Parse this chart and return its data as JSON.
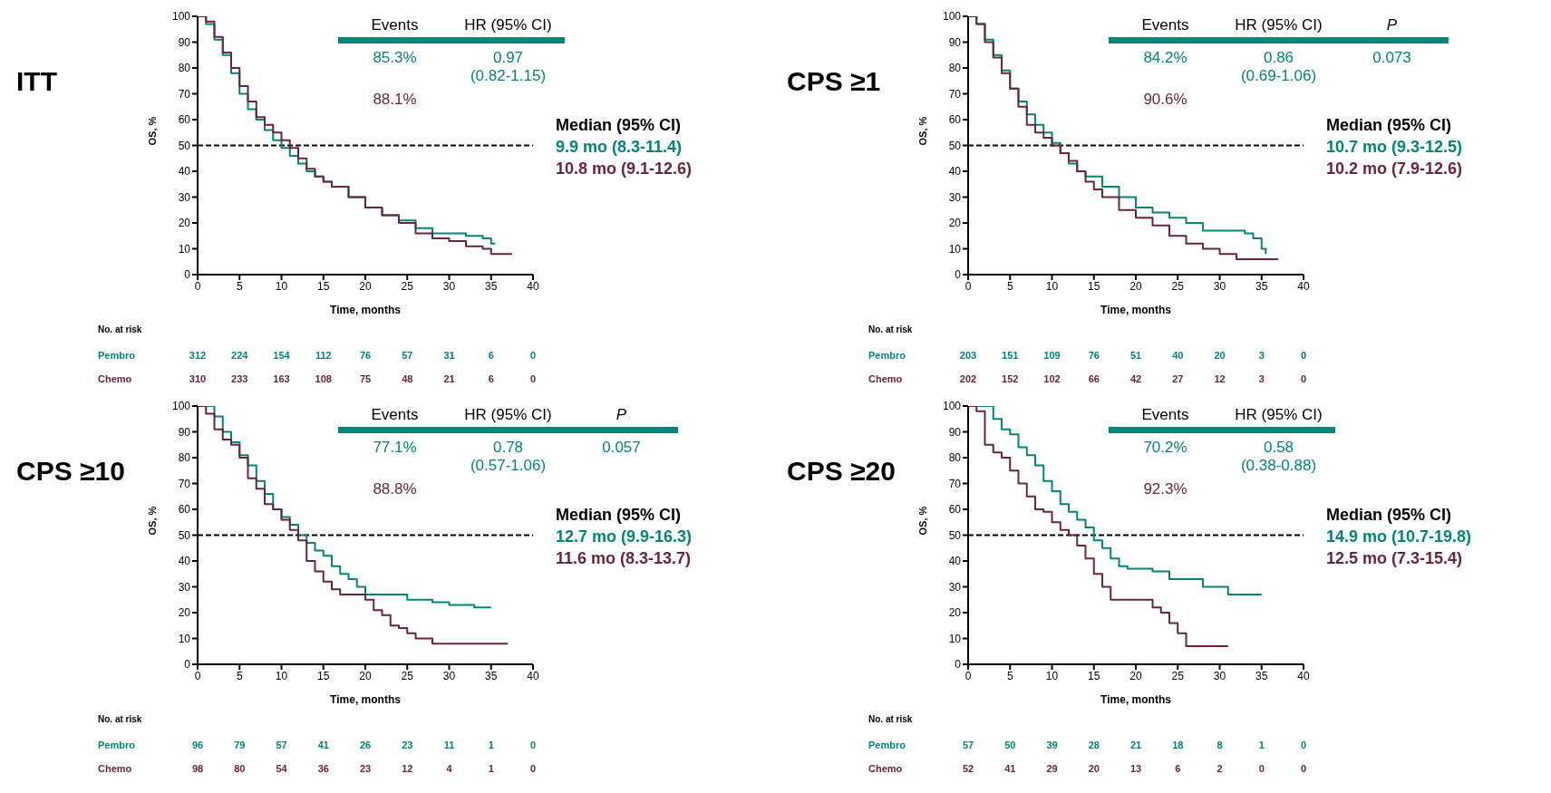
{
  "chart_data": [
    {
      "type": "step",
      "title": "ITT",
      "xlabel": "Time, months",
      "ylabel": "OS, %",
      "xlim": [
        0,
        40
      ],
      "xticks": [
        0,
        5,
        10,
        15,
        20,
        25,
        30,
        35,
        40
      ],
      "ylim": [
        0,
        100
      ],
      "yticks": [
        0,
        10,
        20,
        30,
        40,
        50,
        60,
        70,
        80,
        90,
        100
      ],
      "ref_lines": [
        {
          "axis": "y",
          "value": 50,
          "color": "#000000",
          "line_style": "dashed"
        }
      ],
      "annotations": [
        "Events",
        "HR (95% CI)",
        "85.3%",
        "0.97 (0.82-1.15)",
        "88.1%",
        "Median (95% CI)",
        "9.9 mo (8.3-11.4)",
        "10.8 mo (9.1-12.6)",
        "No. at risk",
        "312 224 154 112 76 57 31 6 0",
        "310 233 163 108 75 48 21 6 0"
      ],
      "series": [
        {
          "name": "Pembro",
          "color": "#00857a",
          "x": [
            0,
            1,
            2,
            3,
            4,
            5,
            6,
            7,
            8,
            9,
            10,
            11,
            12,
            13,
            14,
            15,
            16,
            18,
            20,
            22,
            24,
            26,
            28,
            30,
            32,
            34,
            35,
            35.5
          ],
          "values": [
            100,
            97,
            91,
            85,
            78,
            70,
            64,
            60,
            56,
            52,
            49,
            46,
            43,
            40,
            38,
            36,
            34,
            30,
            26,
            23,
            21,
            18,
            16,
            16,
            15,
            14,
            12,
            12
          ]
        },
        {
          "name": "Chemo",
          "color": "#6b2440",
          "x": [
            0,
            1,
            2,
            3,
            4,
            5,
            6,
            7,
            8,
            9,
            10,
            11,
            12,
            13,
            14,
            15,
            16,
            18,
            20,
            22,
            24,
            26,
            28,
            30,
            32,
            34,
            35,
            36,
            37.5
          ],
          "values": [
            100,
            98,
            92,
            86,
            80,
            73,
            67,
            61,
            58,
            55,
            52,
            49,
            45,
            41,
            38,
            36,
            34,
            30,
            26,
            23,
            20,
            16,
            14,
            13,
            11,
            10,
            8,
            8,
            8
          ]
        }
      ]
    },
    {
      "type": "step",
      "title": "CPS ≥1",
      "xlabel": "Time, months",
      "ylabel": "OS, %",
      "xlim": [
        0,
        40
      ],
      "xticks": [
        0,
        5,
        10,
        15,
        20,
        25,
        30,
        35,
        40
      ],
      "ylim": [
        0,
        100
      ],
      "yticks": [
        0,
        10,
        20,
        30,
        40,
        50,
        60,
        70,
        80,
        90,
        100
      ],
      "ref_lines": [
        {
          "axis": "y",
          "value": 50,
          "color": "#000000",
          "line_style": "dashed"
        }
      ],
      "annotations": [
        "Events",
        "HR (95% CI)",
        "P",
        "84.2%",
        "0.86 (0.69-1.06)",
        "0.073",
        "90.6%",
        "Median (95% CI)",
        "10.7 mo (9.3-12.5)",
        "10.2 mo (7.9-12.6)",
        "No. at risk",
        "203 151 109 76 51 40 20 3 0",
        "202 152 102 66 42 27 12 3 0"
      ],
      "series": [
        {
          "name": "Pembro",
          "color": "#00857a",
          "x": [
            0,
            1,
            2,
            3,
            4,
            5,
            6,
            7,
            8,
            9,
            10,
            11,
            12,
            13,
            14,
            16,
            18,
            20,
            22,
            24,
            26,
            28,
            30,
            32,
            33,
            34,
            35,
            35.5
          ],
          "values": [
            100,
            97,
            91,
            85,
            79,
            72,
            67,
            62,
            58,
            55,
            51,
            47,
            43,
            40,
            38,
            34,
            30,
            26,
            24,
            22,
            20,
            17,
            17,
            17,
            16,
            14,
            10,
            8
          ]
        },
        {
          "name": "Chemo",
          "color": "#6b2440",
          "x": [
            0,
            1,
            2,
            3,
            4,
            5,
            6,
            7,
            8,
            9,
            10,
            11,
            12,
            13,
            14,
            15,
            16,
            18,
            20,
            22,
            24,
            26,
            28,
            30,
            32,
            34,
            37
          ],
          "values": [
            100,
            97,
            90,
            84,
            78,
            72,
            65,
            58,
            55,
            53,
            50,
            47,
            44,
            40,
            36,
            33,
            30,
            25,
            22,
            19,
            15,
            12,
            10,
            8,
            6,
            6,
            6
          ]
        }
      ]
    },
    {
      "type": "step",
      "title": "CPS ≥10",
      "xlabel": "Time, months",
      "ylabel": "OS, %",
      "xlim": [
        0,
        40
      ],
      "xticks": [
        0,
        5,
        10,
        15,
        20,
        25,
        30,
        35,
        40
      ],
      "ylim": [
        0,
        100
      ],
      "yticks": [
        0,
        10,
        20,
        30,
        40,
        50,
        60,
        70,
        80,
        90,
        100
      ],
      "ref_lines": [
        {
          "axis": "y",
          "value": 50,
          "color": "#000000",
          "line_style": "dashed"
        }
      ],
      "annotations": [
        "Events",
        "HR (95% CI)",
        "P",
        "77.1%",
        "0.78 (0.57-1.06)",
        "0.057",
        "88.8%",
        "Median (95% CI)",
        "12.7 mo (9.9-16.3)",
        "11.6 mo (8.3-13.7)",
        "No. at risk",
        "96 79 57 41 26 23 11 1 0",
        "98 80 54 36 23 12 4 1 0"
      ],
      "series": [
        {
          "name": "Pembro",
          "color": "#00857a",
          "x": [
            0,
            2,
            3,
            4,
            5,
            6,
            7,
            8,
            9,
            10,
            11,
            12,
            13,
            14,
            15,
            16,
            17,
            18,
            19,
            20,
            22,
            25,
            28,
            30,
            33,
            35
          ],
          "values": [
            100,
            96,
            90,
            86,
            81,
            77,
            71,
            66,
            60,
            57,
            54,
            50,
            47,
            44,
            42,
            38,
            35,
            33,
            30,
            27,
            27,
            25,
            24,
            23,
            22,
            22
          ]
        },
        {
          "name": "Chemo",
          "color": "#6b2440",
          "x": [
            0,
            1,
            2,
            3,
            4,
            5,
            6,
            7,
            8,
            9,
            10,
            11,
            12,
            13,
            14,
            15,
            16,
            17,
            18,
            20,
            21,
            22,
            23,
            24,
            25,
            26,
            28,
            30,
            33,
            37
          ],
          "values": [
            100,
            97,
            91,
            87,
            85,
            80,
            72,
            68,
            62,
            60,
            56,
            52,
            48,
            40,
            36,
            32,
            29,
            27,
            27,
            25,
            21,
            19,
            15,
            14,
            12,
            10,
            8,
            8,
            8,
            8
          ]
        }
      ]
    },
    {
      "type": "step",
      "title": "CPS ≥20",
      "xlabel": "Time, months",
      "ylabel": "OS, %",
      "xlim": [
        0,
        40
      ],
      "xticks": [
        0,
        5,
        10,
        15,
        20,
        25,
        30,
        35,
        40
      ],
      "ylim": [
        0,
        100
      ],
      "yticks": [
        0,
        10,
        20,
        30,
        40,
        50,
        60,
        70,
        80,
        90,
        100
      ],
      "ref_lines": [
        {
          "axis": "y",
          "value": 50,
          "color": "#000000",
          "line_style": "dashed"
        }
      ],
      "annotations": [
        "Events",
        "HR (95% CI)",
        "70.2%",
        "0.58 (0.38-0.88)",
        "92.3%",
        "Median (95% CI)",
        "14.9 mo (10.7-19.8)",
        "12.5 mo (7.3-15.4)",
        "No. at risk",
        "57 50 39 28 21 18 8 1 0",
        "52 41 29 20 13 6 2 0 0"
      ],
      "series": [
        {
          "name": "Pembro",
          "color": "#00857a",
          "x": [
            0,
            2,
            3,
            4,
            5,
            6,
            7,
            8,
            9,
            10,
            11,
            12,
            13,
            14,
            15,
            16,
            17,
            18,
            19,
            20,
            22,
            24,
            26,
            28,
            30,
            31,
            32,
            35
          ],
          "values": [
            100,
            100,
            95,
            91,
            89,
            84,
            81,
            77,
            71,
            67,
            62,
            59,
            56,
            53,
            48,
            45,
            41,
            38,
            37,
            37,
            36,
            33,
            33,
            30,
            30,
            27,
            27,
            27
          ]
        },
        {
          "name": "Chemo",
          "color": "#6b2440",
          "x": [
            0,
            1,
            2,
            3,
            4,
            5,
            6,
            7,
            8,
            9,
            10,
            11,
            12,
            13,
            14,
            15,
            16,
            17,
            18,
            20,
            22,
            23,
            24,
            25,
            26,
            28,
            31
          ],
          "values": [
            100,
            98,
            85,
            82,
            80,
            75,
            70,
            65,
            60,
            59,
            55,
            52,
            50,
            46,
            41,
            35,
            30,
            25,
            25,
            25,
            22,
            20,
            16,
            12,
            7,
            7,
            7
          ]
        }
      ]
    }
  ]
}
